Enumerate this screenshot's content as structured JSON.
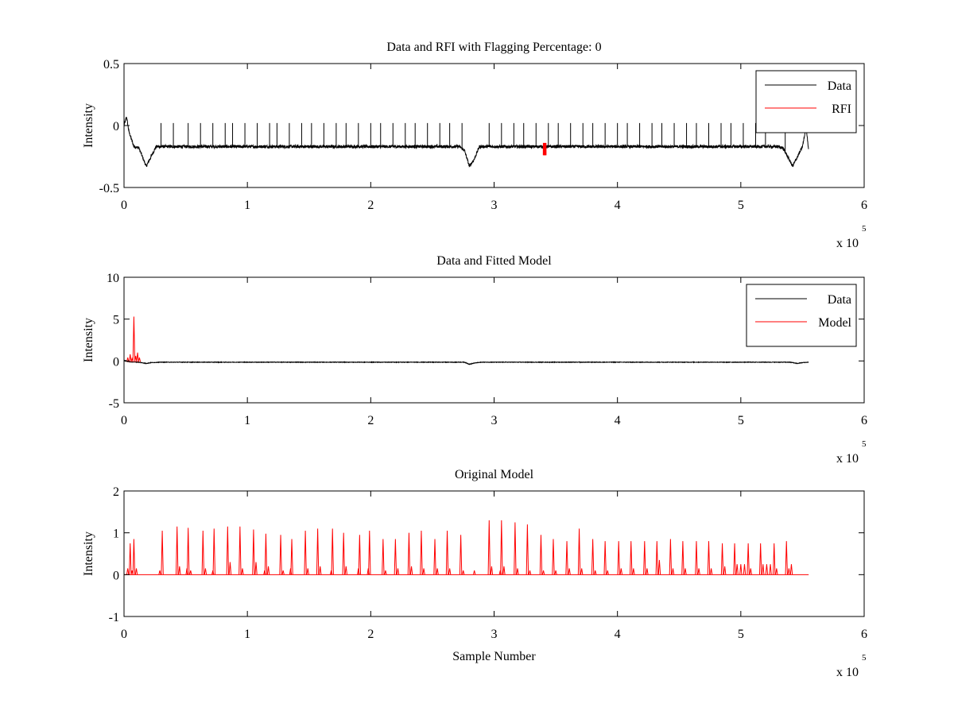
{
  "chart_data": [
    {
      "type": "line",
      "title": "Data and RFI with Flagging Percentage: 0",
      "xlabel": "",
      "ylabel": "Intensity",
      "xlim": [
        0,
        600000
      ],
      "ylim": [
        -0.5,
        0.5
      ],
      "xticks": [
        0,
        1,
        2,
        3,
        4,
        5,
        6
      ],
      "yticks": [
        "-0.5",
        "0",
        "0.5"
      ],
      "x_multiplier": {
        "base": "x 10",
        "exponent": "5"
      },
      "legend": {
        "position": "top-right",
        "entries": [
          {
            "label": "Data",
            "color": "#000000"
          },
          {
            "label": "RFI",
            "color": "#ff0000"
          }
        ]
      },
      "series": [
        {
          "name": "Data",
          "color": "#000000",
          "kind": "noisy-baseline",
          "x": [
            0,
            2000,
            4000,
            8000,
            12000,
            18000,
            22000,
            26000,
            30000,
            272000,
            276000,
            280000,
            284000,
            288000,
            292000,
            530000,
            534000,
            538000,
            542000,
            546000,
            550000,
            553000,
            555000
          ],
          "y": [
            0.0,
            0.07,
            -0.05,
            -0.17,
            -0.18,
            -0.33,
            -0.25,
            -0.17,
            -0.17,
            -0.17,
            -0.2,
            -0.33,
            -0.27,
            -0.17,
            -0.17,
            -0.17,
            -0.18,
            -0.25,
            -0.33,
            -0.25,
            -0.17,
            -0.01,
            -0.2
          ],
          "noise": 0.012,
          "spikes": {
            "x": [
              30000,
              40000,
              52000,
              62000,
              72000,
              82000,
              88000,
              98000,
              108000,
              118000,
              124000,
              134000,
              144000,
              152000,
              162000,
              172000,
              180000,
              190000,
              200000,
              208000,
              218000,
              228000,
              236000,
              246000,
              256000,
              264000,
              274000,
              296000,
              306000,
              316000,
              324000,
              334000,
              344000,
              352000,
              362000,
              372000,
              380000,
              390000,
              400000,
              408000,
              418000,
              428000,
              436000,
              446000,
              456000,
              464000,
              474000,
              484000,
              492000,
              502000,
              512000,
              520000,
              536000
            ],
            "y": 0.02
          }
        },
        {
          "name": "RFI",
          "color": "#ff0000",
          "kind": "band",
          "x": [
            340000,
            342000
          ],
          "y": [
            -0.24,
            -0.14
          ]
        }
      ]
    },
    {
      "type": "line",
      "title": "Data and Fitted Model",
      "xlabel": "",
      "ylabel": "Intensity",
      "xlim": [
        0,
        600000
      ],
      "ylim": [
        -5,
        10
      ],
      "xticks": [
        0,
        1,
        2,
        3,
        4,
        5,
        6
      ],
      "yticks": [
        "-5",
        "0",
        "5",
        "10"
      ],
      "x_multiplier": {
        "base": "x 10",
        "exponent": "5"
      },
      "legend": {
        "position": "top-right",
        "entries": [
          {
            "label": "Data",
            "color": "#000000"
          },
          {
            "label": "Model",
            "color": "#ff0000"
          }
        ]
      },
      "series": [
        {
          "name": "Data",
          "color": "#000000",
          "kind": "noisy-baseline",
          "x": [
            0,
            4000,
            12000,
            18000,
            22000,
            30000,
            276000,
            280000,
            284000,
            290000,
            540000,
            546000,
            550000,
            555000
          ],
          "y": [
            0.05,
            -0.1,
            -0.15,
            -0.3,
            -0.2,
            -0.15,
            -0.15,
            -0.4,
            -0.25,
            -0.15,
            -0.15,
            -0.3,
            -0.2,
            -0.15
          ],
          "noise": 0.03,
          "spikes": {
            "x": [],
            "y": 0
          }
        },
        {
          "name": "Model",
          "color": "#ff0000",
          "kind": "spikes",
          "baseline": -0.1,
          "spikes": [
            {
              "x": 3000,
              "y": 0.4
            },
            {
              "x": 5000,
              "y": 0.8
            },
            {
              "x": 6500,
              "y": 0.3
            },
            {
              "x": 8000,
              "y": 5.3
            },
            {
              "x": 9500,
              "y": 0.6
            },
            {
              "x": 11000,
              "y": 1.0
            },
            {
              "x": 12500,
              "y": 0.4
            }
          ]
        }
      ]
    },
    {
      "type": "line",
      "title": "Original Model",
      "xlabel": "Sample Number",
      "ylabel": "Intensity",
      "xlim": [
        0,
        600000
      ],
      "ylim": [
        -1,
        2
      ],
      "xticks": [
        0,
        1,
        2,
        3,
        4,
        5,
        6
      ],
      "yticks": [
        "-1",
        "0",
        "1",
        "2"
      ],
      "x_multiplier": {
        "base": "x 10",
        "exponent": "5"
      },
      "legend": null,
      "series": [
        {
          "name": "Original Model",
          "color": "#ff0000",
          "kind": "spikes",
          "baseline": 0,
          "x_end": 555000,
          "spikes": [
            {
              "x": 3000,
              "y": 0.15
            },
            {
              "x": 5000,
              "y": 0.75
            },
            {
              "x": 6500,
              "y": 0.1
            },
            {
              "x": 8000,
              "y": 0.85
            },
            {
              "x": 10000,
              "y": 0.15
            },
            {
              "x": 29000,
              "y": 0.1
            },
            {
              "x": 31000,
              "y": 1.05
            },
            {
              "x": 43000,
              "y": 1.15
            },
            {
              "x": 45000,
              "y": 0.2
            },
            {
              "x": 51000,
              "y": 0.15
            },
            {
              "x": 52000,
              "y": 1.12
            },
            {
              "x": 54000,
              "y": 0.1
            },
            {
              "x": 64000,
              "y": 1.05
            },
            {
              "x": 66000,
              "y": 0.15
            },
            {
              "x": 72000,
              "y": 0.1
            },
            {
              "x": 73000,
              "y": 1.1
            },
            {
              "x": 84000,
              "y": 1.15
            },
            {
              "x": 86000,
              "y": 0.3
            },
            {
              "x": 94000,
              "y": 1.15
            },
            {
              "x": 96000,
              "y": 0.15
            },
            {
              "x": 105000,
              "y": 1.08
            },
            {
              "x": 107000,
              "y": 0.3
            },
            {
              "x": 114000,
              "y": 0.1
            },
            {
              "x": 115000,
              "y": 0.98
            },
            {
              "x": 117000,
              "y": 0.2
            },
            {
              "x": 127000,
              "y": 0.95
            },
            {
              "x": 129000,
              "y": 0.1
            },
            {
              "x": 135000,
              "y": 0.15
            },
            {
              "x": 136000,
              "y": 0.85
            },
            {
              "x": 147000,
              "y": 1.05
            },
            {
              "x": 149000,
              "y": 0.15
            },
            {
              "x": 157000,
              "y": 1.1
            },
            {
              "x": 159000,
              "y": 0.2
            },
            {
              "x": 168000,
              "y": 0.1
            },
            {
              "x": 169000,
              "y": 1.1
            },
            {
              "x": 178000,
              "y": 1.0
            },
            {
              "x": 180000,
              "y": 0.2
            },
            {
              "x": 190000,
              "y": 0.15
            },
            {
              "x": 191000,
              "y": 0.95
            },
            {
              "x": 198000,
              "y": 0.15
            },
            {
              "x": 199000,
              "y": 1.05
            },
            {
              "x": 210000,
              "y": 0.85
            },
            {
              "x": 212000,
              "y": 0.1
            },
            {
              "x": 220000,
              "y": 0.85
            },
            {
              "x": 222000,
              "y": 0.15
            },
            {
              "x": 231000,
              "y": 1.0
            },
            {
              "x": 233000,
              "y": 0.2
            },
            {
              "x": 241000,
              "y": 1.05
            },
            {
              "x": 243000,
              "y": 0.15
            },
            {
              "x": 252000,
              "y": 0.85
            },
            {
              "x": 254000,
              "y": 0.15
            },
            {
              "x": 262000,
              "y": 1.05
            },
            {
              "x": 264000,
              "y": 0.15
            },
            {
              "x": 273000,
              "y": 0.95
            },
            {
              "x": 275000,
              "y": 0.1
            },
            {
              "x": 284000,
              "y": 0.1
            },
            {
              "x": 296000,
              "y": 1.3
            },
            {
              "x": 298000,
              "y": 0.2
            },
            {
              "x": 305000,
              "y": 0.1
            },
            {
              "x": 306000,
              "y": 1.3
            },
            {
              "x": 308000,
              "y": 0.2
            },
            {
              "x": 317000,
              "y": 1.25
            },
            {
              "x": 319000,
              "y": 0.15
            },
            {
              "x": 327000,
              "y": 1.2
            },
            {
              "x": 329000,
              "y": 0.1
            },
            {
              "x": 338000,
              "y": 0.95
            },
            {
              "x": 340000,
              "y": 0.1
            },
            {
              "x": 348000,
              "y": 0.85
            },
            {
              "x": 350000,
              "y": 0.1
            },
            {
              "x": 359000,
              "y": 0.8
            },
            {
              "x": 361000,
              "y": 0.15
            },
            {
              "x": 369000,
              "y": 1.1
            },
            {
              "x": 371000,
              "y": 0.15
            },
            {
              "x": 380000,
              "y": 0.85
            },
            {
              "x": 382000,
              "y": 0.1
            },
            {
              "x": 390000,
              "y": 0.8
            },
            {
              "x": 392000,
              "y": 0.1
            },
            {
              "x": 401000,
              "y": 0.8
            },
            {
              "x": 403000,
              "y": 0.15
            },
            {
              "x": 411000,
              "y": 0.8
            },
            {
              "x": 413000,
              "y": 0.15
            },
            {
              "x": 422000,
              "y": 0.8
            },
            {
              "x": 424000,
              "y": 0.15
            },
            {
              "x": 432000,
              "y": 0.8
            },
            {
              "x": 434000,
              "y": 0.35
            },
            {
              "x": 443000,
              "y": 0.85
            },
            {
              "x": 445000,
              "y": 0.15
            },
            {
              "x": 453000,
              "y": 0.8
            },
            {
              "x": 455000,
              "y": 0.15
            },
            {
              "x": 464000,
              "y": 0.8
            },
            {
              "x": 466000,
              "y": 0.15
            },
            {
              "x": 474000,
              "y": 0.8
            },
            {
              "x": 476000,
              "y": 0.15
            },
            {
              "x": 485000,
              "y": 0.75
            },
            {
              "x": 487000,
              "y": 0.2
            },
            {
              "x": 495000,
              "y": 0.75
            },
            {
              "x": 497000,
              "y": 0.25
            },
            {
              "x": 500000,
              "y": 0.25
            },
            {
              "x": 503000,
              "y": 0.25
            },
            {
              "x": 506000,
              "y": 0.75
            },
            {
              "x": 508000,
              "y": 0.15
            },
            {
              "x": 516000,
              "y": 0.75
            },
            {
              "x": 518000,
              "y": 0.25
            },
            {
              "x": 521000,
              "y": 0.25
            },
            {
              "x": 524000,
              "y": 0.25
            },
            {
              "x": 527000,
              "y": 0.75
            },
            {
              "x": 529000,
              "y": 0.15
            },
            {
              "x": 537000,
              "y": 0.8
            },
            {
              "x": 539000,
              "y": 0.15
            },
            {
              "x": 541000,
              "y": 0.25
            }
          ]
        }
      ]
    }
  ]
}
